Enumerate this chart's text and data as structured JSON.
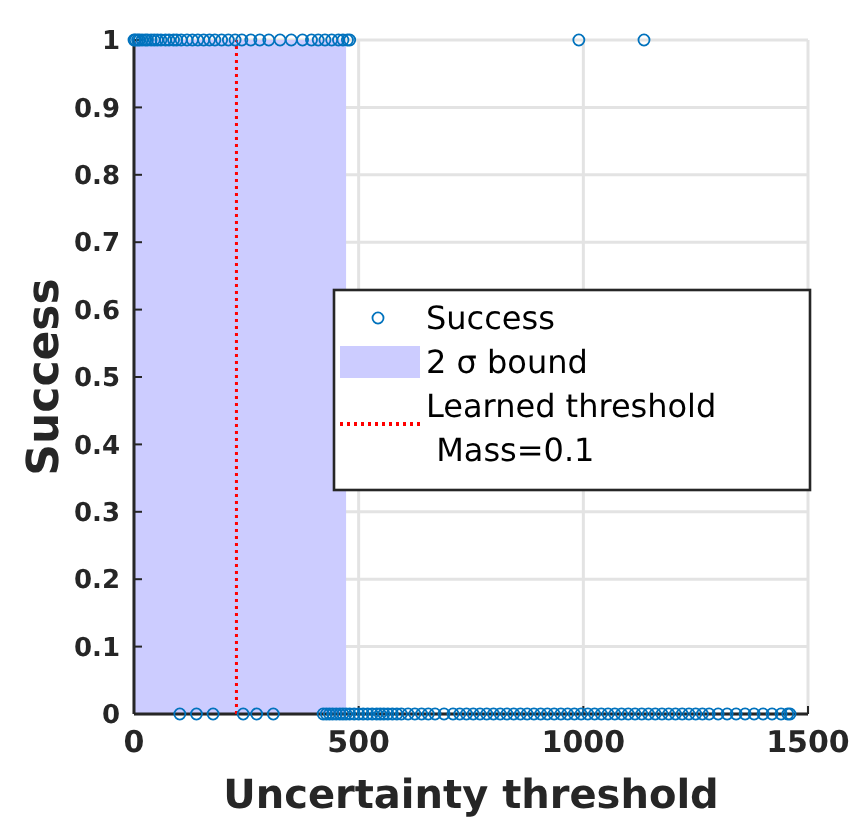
{
  "chart_data": {
    "type": "scatter",
    "xlabel": "Uncertainty threshold",
    "ylabel": "Success",
    "xlim": [
      0,
      1500
    ],
    "xticks": [
      0,
      500,
      1000,
      1500
    ],
    "ylim": [
      0,
      1
    ],
    "yticks": [
      0,
      0.1,
      0.2,
      0.3,
      0.4,
      0.5,
      0.6,
      0.7,
      0.8,
      0.9,
      1
    ],
    "grid": true,
    "legend": "right",
    "marker": "circle",
    "series": [
      {
        "name": "Learned threshold\n Mass=0.1",
        "color": "#ff0000",
        "type": "line",
        "marker": "none",
        "x": [
          228,
          228
        ],
        "values": [
          0,
          1
        ]
      },
      {
        "name": "Success",
        "color": "#0072bd",
        "x": [
          0,
          3,
          8,
          12,
          18,
          25,
          30,
          38,
          45,
          52,
          60,
          70,
          78,
          88,
          95,
          105,
          118,
          130,
          142,
          155,
          168,
          180,
          195,
          210,
          225,
          240,
          260,
          280,
          300,
          325,
          350,
          375,
          395,
          410,
          425,
          440,
          455,
          465,
          475,
          480,
          990,
          1135,
          102,
          139,
          176,
          243,
          273,
          310,
          421,
          428,
          435,
          442,
          450,
          458,
          465,
          472,
          480,
          490,
          500,
          510,
          520,
          530,
          540,
          548,
          556,
          565,
          575,
          585,
          595,
          610,
          625,
          640,
          655,
          670,
          690,
          710,
          725,
          740,
          755,
          770,
          785,
          800,
          815,
          830,
          845,
          860,
          875,
          890,
          905,
          920,
          935,
          950,
          965,
          980,
          995,
          1010,
          1025,
          1040,
          1055,
          1070,
          1085,
          1100,
          1115,
          1130,
          1145,
          1160,
          1175,
          1190,
          1205,
          1220,
          1235,
          1250,
          1265,
          1280,
          1300,
          1320,
          1340,
          1360,
          1380,
          1400,
          1420,
          1440,
          1455,
          1460
        ],
        "values": [
          1,
          1,
          1,
          1,
          1,
          1,
          1,
          1,
          1,
          1,
          1,
          1,
          1,
          1,
          1,
          1,
          1,
          1,
          1,
          1,
          1,
          1,
          1,
          1,
          1,
          1,
          1,
          1,
          1,
          1,
          1,
          1,
          1,
          1,
          1,
          1,
          1,
          1,
          1,
          1,
          1,
          1,
          0,
          0,
          0,
          0,
          0,
          0,
          0,
          0,
          0,
          0,
          0,
          0,
          0,
          0,
          0,
          0,
          0,
          0,
          0,
          0,
          0,
          0,
          0,
          0,
          0,
          0,
          0,
          0,
          0,
          0,
          0,
          0,
          0,
          0,
          0,
          0,
          0,
          0,
          0,
          0,
          0,
          0,
          0,
          0,
          0,
          0,
          0,
          0,
          0,
          0,
          0,
          0,
          0,
          0,
          0,
          0,
          0,
          0,
          0,
          0,
          0,
          0,
          0,
          0,
          0,
          0,
          0,
          0,
          0,
          0,
          0,
          0,
          0,
          0,
          0,
          0,
          0,
          0,
          0,
          0,
          0,
          0
        ]
      }
    ],
    "bands": [
      {
        "axis": "x",
        "from": 0,
        "to": 472,
        "label": "2 σ bound",
        "color": "#ccccff"
      }
    ],
    "line_style": "dotted"
  }
}
